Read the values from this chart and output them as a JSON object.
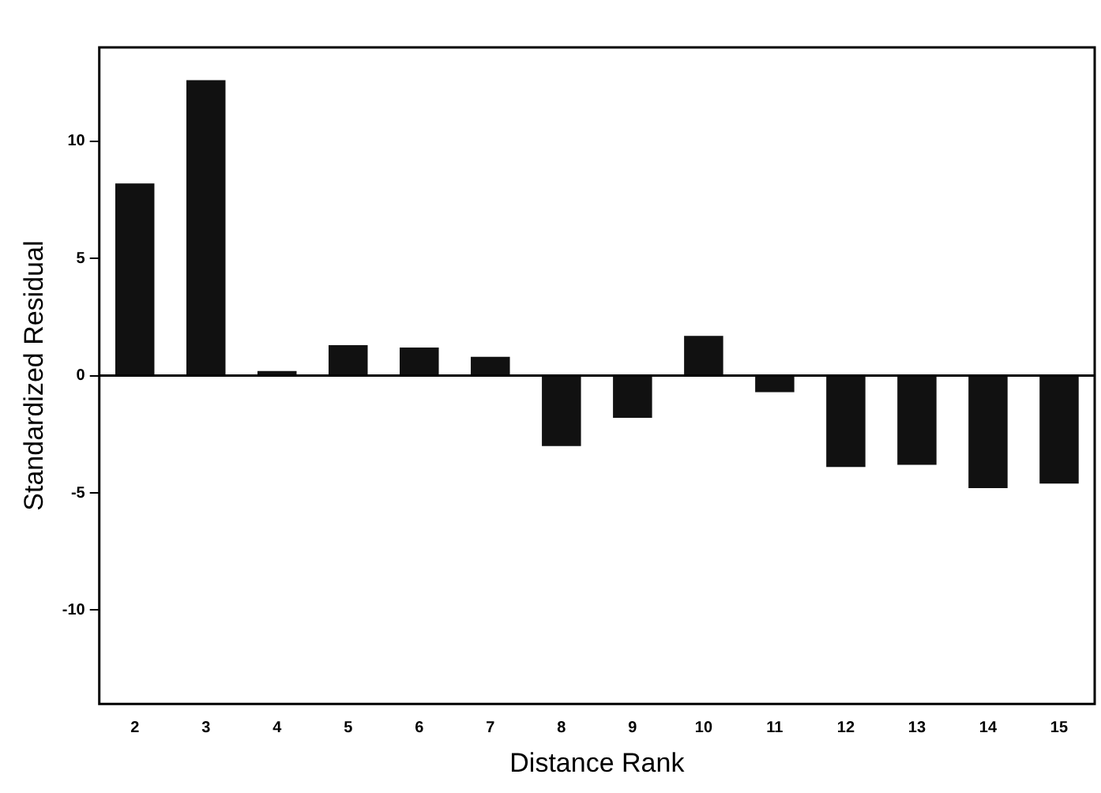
{
  "chart_data": {
    "type": "bar",
    "xlabel": "Distance Rank",
    "ylabel": "Standardized Residual",
    "categories": [
      "2",
      "3",
      "4",
      "5",
      "6",
      "7",
      "8",
      "9",
      "10",
      "11",
      "12",
      "13",
      "14",
      "15"
    ],
    "values": [
      8.2,
      12.6,
      0.2,
      1.3,
      1.2,
      0.8,
      -3.0,
      -1.8,
      1.7,
      -0.7,
      -3.9,
      -3.8,
      -4.8,
      -4.6
    ],
    "color": "#111111",
    "ylim": [
      -14,
      14
    ],
    "yticks": [
      -10,
      -5,
      0,
      5,
      10
    ],
    "grid": false,
    "legend": false,
    "ref_lines": [
      {
        "axis": "y",
        "value": 0,
        "color": "#000000"
      }
    ]
  }
}
